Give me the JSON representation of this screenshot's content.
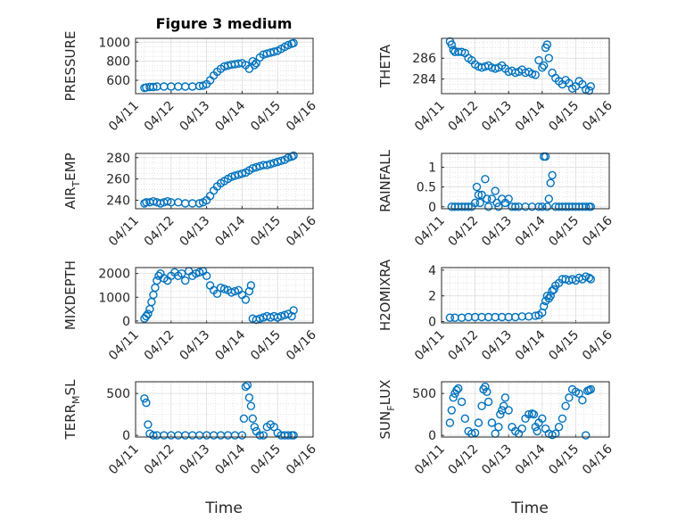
{
  "chart_data": [
    {
      "type": "scatter",
      "title": "Figure 3 medium",
      "ylabel": "PRESSURE",
      "xlim": [
        "04/11",
        "04/16"
      ],
      "ylim": [
        460,
        1040
      ],
      "yticks": [
        600,
        800,
        1000
      ],
      "xticks": [
        "04/11",
        "04/12",
        "04/13",
        "04/14",
        "04/15",
        "04/16"
      ],
      "series": [
        {
          "x": [
            0.25,
            0.3,
            0.4,
            0.5,
            0.6,
            0.8,
            1.0,
            1.2,
            1.4,
            1.6,
            1.8,
            1.9,
            2.0,
            2.1,
            2.2,
            2.3,
            2.4,
            2.5,
            2.6,
            2.7,
            2.8,
            2.9,
            3.0,
            3.1,
            3.2,
            3.3,
            3.35,
            3.4,
            3.5,
            3.6,
            3.7,
            3.8,
            3.9,
            4.0,
            4.1,
            4.2,
            4.3,
            4.4,
            4.45
          ],
          "y": [
            520,
            525,
            530,
            530,
            535,
            535,
            535,
            535,
            535,
            535,
            540,
            545,
            560,
            600,
            650,
            690,
            720,
            745,
            755,
            765,
            770,
            775,
            780,
            760,
            720,
            800,
            760,
            780,
            840,
            870,
            880,
            890,
            900,
            910,
            930,
            950,
            970,
            985,
            990
          ]
        }
      ]
    },
    {
      "type": "scatter",
      "title": "",
      "ylabel": "THETA",
      "xlim": [
        "04/11",
        "04/16"
      ],
      "ylim": [
        282.6,
        287.9
      ],
      "yticks": [
        284,
        286
      ],
      "xticks": [
        "04/11",
        "04/12",
        "04/13",
        "04/14",
        "04/15",
        "04/16"
      ],
      "series": [
        {
          "x": [
            0.25,
            0.3,
            0.35,
            0.4,
            0.5,
            0.6,
            0.7,
            0.8,
            0.9,
            1.0,
            1.1,
            1.2,
            1.3,
            1.4,
            1.5,
            1.6,
            1.7,
            1.8,
            1.9,
            2.0,
            2.1,
            2.2,
            2.3,
            2.4,
            2.5,
            2.6,
            2.7,
            2.8,
            2.9,
            3.0,
            3.05,
            3.1,
            3.15,
            3.2,
            3.3,
            3.4,
            3.5,
            3.6,
            3.7,
            3.8,
            3.9,
            4.0,
            4.1,
            4.2,
            4.3,
            4.4,
            4.45
          ],
          "y": [
            287.6,
            287.3,
            286.8,
            286.6,
            286.6,
            286.6,
            286.5,
            286.0,
            285.8,
            285.4,
            285.2,
            285.1,
            285.2,
            285.3,
            285.1,
            285.0,
            285.1,
            285.3,
            285.0,
            284.7,
            284.8,
            284.6,
            284.7,
            284.9,
            284.6,
            284.7,
            284.5,
            284.4,
            285.8,
            285.1,
            285.3,
            287.0,
            287.3,
            286.0,
            284.6,
            284.1,
            283.8,
            283.5,
            283.9,
            283.6,
            283.1,
            283.3,
            283.8,
            283.5,
            283.0,
            282.9,
            283.3
          ]
        }
      ]
    },
    {
      "type": "scatter",
      "title": "",
      "ylabel": "AIR_TEMP",
      "xlim": [
        "04/11",
        "04/16"
      ],
      "ylim": [
        232,
        284
      ],
      "yticks": [
        240,
        260,
        280
      ],
      "xticks": [
        "04/11",
        "04/12",
        "04/13",
        "04/14",
        "04/15",
        "04/16"
      ],
      "series": [
        {
          "x": [
            0.25,
            0.3,
            0.4,
            0.5,
            0.6,
            0.7,
            0.8,
            0.9,
            1.0,
            1.2,
            1.4,
            1.6,
            1.8,
            1.9,
            2.0,
            2.1,
            2.2,
            2.3,
            2.4,
            2.5,
            2.6,
            2.7,
            2.8,
            2.9,
            3.0,
            3.1,
            3.2,
            3.3,
            3.4,
            3.5,
            3.6,
            3.7,
            3.8,
            3.9,
            4.0,
            4.1,
            4.2,
            4.3,
            4.4,
            4.45
          ],
          "y": [
            237,
            238,
            238,
            239,
            238,
            237,
            238,
            239,
            238,
            238,
            237,
            237,
            237,
            238,
            240,
            244,
            249,
            253,
            256,
            258,
            260,
            262,
            263,
            264,
            265,
            266,
            268,
            270,
            271,
            272,
            273,
            273,
            274,
            275,
            276,
            277,
            278,
            280,
            281,
            282
          ]
        }
      ]
    },
    {
      "type": "scatter",
      "title": "",
      "ylabel": "RAINFALL",
      "xlim": [
        "04/11",
        "04/16"
      ],
      "ylim": [
        -0.05,
        1.35
      ],
      "yticks": [
        0,
        0.5,
        1
      ],
      "xticks": [
        "04/11",
        "04/12",
        "04/13",
        "04/14",
        "04/15",
        "04/16"
      ],
      "series": [
        {
          "x": [
            0.3,
            0.4,
            0.5,
            0.6,
            0.7,
            0.8,
            0.9,
            1.0,
            1.05,
            1.1,
            1.15,
            1.2,
            1.3,
            1.35,
            1.4,
            1.5,
            1.6,
            1.65,
            1.7,
            1.8,
            1.9,
            2.0,
            2.1,
            2.2,
            2.3,
            2.5,
            2.7,
            2.9,
            3.0,
            3.05,
            3.1,
            3.15,
            3.2,
            3.25,
            3.3,
            3.4,
            3.5,
            3.6,
            3.7,
            3.8,
            3.9,
            4.0,
            4.1,
            4.2,
            4.3,
            4.4,
            4.45
          ],
          "y": [
            0,
            0,
            0,
            0,
            0,
            0,
            0,
            0.1,
            0.5,
            0.3,
            0.1,
            0.3,
            0.7,
            0.2,
            0,
            0.2,
            0.4,
            0.1,
            0,
            0.2,
            0.1,
            0.2,
            0,
            0,
            0,
            0,
            0,
            0,
            0,
            1.27,
            1.27,
            0,
            0.2,
            0.6,
            0.8,
            0,
            0,
            0,
            0,
            0,
            0,
            0,
            0,
            0,
            0,
            0,
            0
          ]
        }
      ]
    },
    {
      "type": "scatter",
      "title": "",
      "ylabel": "MIXDEPTH",
      "xlim": [
        "04/11",
        "04/16"
      ],
      "ylim": [
        -80,
        2250
      ],
      "yticks": [
        0,
        1000,
        2000
      ],
      "xticks": [
        "04/11",
        "04/12",
        "04/13",
        "04/14",
        "04/15",
        "04/16"
      ],
      "series": [
        {
          "x": [
            0.25,
            0.3,
            0.35,
            0.4,
            0.45,
            0.5,
            0.55,
            0.6,
            0.65,
            0.7,
            0.8,
            0.9,
            1.0,
            1.1,
            1.2,
            1.3,
            1.4,
            1.5,
            1.6,
            1.7,
            1.8,
            1.9,
            2.0,
            2.1,
            2.2,
            2.3,
            2.4,
            2.5,
            2.6,
            2.7,
            2.8,
            2.9,
            3.0,
            3.1,
            3.2,
            3.25,
            3.3,
            3.4,
            3.5,
            3.6,
            3.7,
            3.8,
            3.9,
            4.0,
            4.1,
            4.2,
            4.3,
            4.4,
            4.45
          ],
          "y": [
            100,
            200,
            300,
            500,
            800,
            1100,
            1400,
            1700,
            1900,
            2000,
            1800,
            1700,
            1900,
            2050,
            1900,
            2000,
            1700,
            2100,
            1900,
            2000,
            2050,
            2100,
            1900,
            1500,
            1300,
            1150,
            1400,
            1350,
            1300,
            1200,
            1250,
            1300,
            1100,
            900,
            1250,
            1500,
            100,
            50,
            100,
            150,
            200,
            150,
            200,
            150,
            200,
            250,
            300,
            200,
            450
          ]
        }
      ]
    },
    {
      "type": "scatter",
      "title": "",
      "ylabel": "H2OMIXRA",
      "xlim": [
        "04/11",
        "04/16"
      ],
      "ylim": [
        -0.1,
        4.2
      ],
      "yticks": [
        0,
        2,
        4
      ],
      "xticks": [
        "04/11",
        "04/12",
        "04/13",
        "04/14",
        "04/15",
        "04/16"
      ],
      "series": [
        {
          "x": [
            0.25,
            0.4,
            0.6,
            0.8,
            1.0,
            1.2,
            1.4,
            1.6,
            1.8,
            2.0,
            2.2,
            2.4,
            2.6,
            2.8,
            2.9,
            3.0,
            3.05,
            3.1,
            3.15,
            3.2,
            3.25,
            3.3,
            3.35,
            3.4,
            3.5,
            3.6,
            3.7,
            3.8,
            3.9,
            4.0,
            4.1,
            4.2,
            4.3,
            4.4,
            4.45
          ],
          "y": [
            0.3,
            0.3,
            0.3,
            0.35,
            0.35,
            0.35,
            0.35,
            0.35,
            0.35,
            0.35,
            0.35,
            0.4,
            0.4,
            0.45,
            0.5,
            0.7,
            1.2,
            1.6,
            2.0,
            1.8,
            2.0,
            2.4,
            2.5,
            2.8,
            3.0,
            3.3,
            3.3,
            3.2,
            3.3,
            3.2,
            3.4,
            3.3,
            3.5,
            3.4,
            3.3
          ]
        }
      ]
    },
    {
      "type": "scatter",
      "title": "",
      "ylabel": "TERR_MSL",
      "xlim": [
        "04/11",
        "04/16"
      ],
      "ylim": [
        -20,
        640
      ],
      "yticks": [
        0,
        500
      ],
      "xticks": [
        "04/11",
        "04/12",
        "04/13",
        "04/14",
        "04/15",
        "04/16"
      ],
      "series": [
        {
          "x": [
            0.25,
            0.3,
            0.35,
            0.4,
            0.5,
            0.6,
            0.8,
            1.0,
            1.2,
            1.4,
            1.6,
            1.8,
            2.0,
            2.2,
            2.4,
            2.6,
            2.8,
            3.0,
            3.05,
            3.1,
            3.15,
            3.2,
            3.25,
            3.3,
            3.35,
            3.4,
            3.5,
            3.6,
            3.7,
            3.8,
            3.9,
            4.0,
            4.1,
            4.2,
            4.3,
            4.4,
            4.45
          ],
          "y": [
            440,
            390,
            130,
            20,
            0,
            0,
            0,
            0,
            0,
            0,
            0,
            0,
            0,
            0,
            0,
            0,
            0,
            0,
            200,
            580,
            600,
            450,
            350,
            200,
            100,
            50,
            0,
            0,
            100,
            130,
            100,
            30,
            0,
            0,
            0,
            0,
            0
          ]
        }
      ]
    },
    {
      "type": "scatter",
      "title": "",
      "ylabel": "SUN_FLUX",
      "xlim": [
        "04/11",
        "04/16"
      ],
      "ylim": [
        -20,
        640
      ],
      "yticks": [
        0,
        500
      ],
      "xticks": [
        "04/11",
        "04/12",
        "04/13",
        "04/14",
        "04/15",
        "04/16"
      ],
      "series": [
        {
          "x": [
            0.25,
            0.3,
            0.35,
            0.4,
            0.45,
            0.5,
            0.6,
            0.7,
            0.8,
            0.9,
            1.0,
            1.1,
            1.2,
            1.25,
            1.3,
            1.35,
            1.4,
            1.5,
            1.6,
            1.7,
            1.75,
            1.8,
            1.85,
            1.9,
            2.0,
            2.1,
            2.2,
            2.3,
            2.4,
            2.5,
            2.6,
            2.7,
            2.75,
            2.8,
            2.85,
            2.9,
            3.0,
            3.1,
            3.2,
            3.3,
            3.4,
            3.5,
            3.6,
            3.7,
            3.8,
            3.9,
            4.0,
            4.1,
            4.2,
            4.3,
            4.35,
            4.4,
            4.45
          ],
          "y": [
            150,
            300,
            450,
            500,
            540,
            560,
            400,
            200,
            50,
            20,
            30,
            150,
            350,
            550,
            580,
            520,
            400,
            150,
            20,
            100,
            250,
            300,
            350,
            450,
            300,
            100,
            50,
            20,
            80,
            200,
            250,
            260,
            250,
            100,
            50,
            150,
            200,
            80,
            20,
            5,
            20,
            100,
            200,
            350,
            450,
            550,
            520,
            500,
            420,
            0,
            530,
            540,
            550
          ]
        }
      ]
    }
  ],
  "x_axis_label": "Time"
}
